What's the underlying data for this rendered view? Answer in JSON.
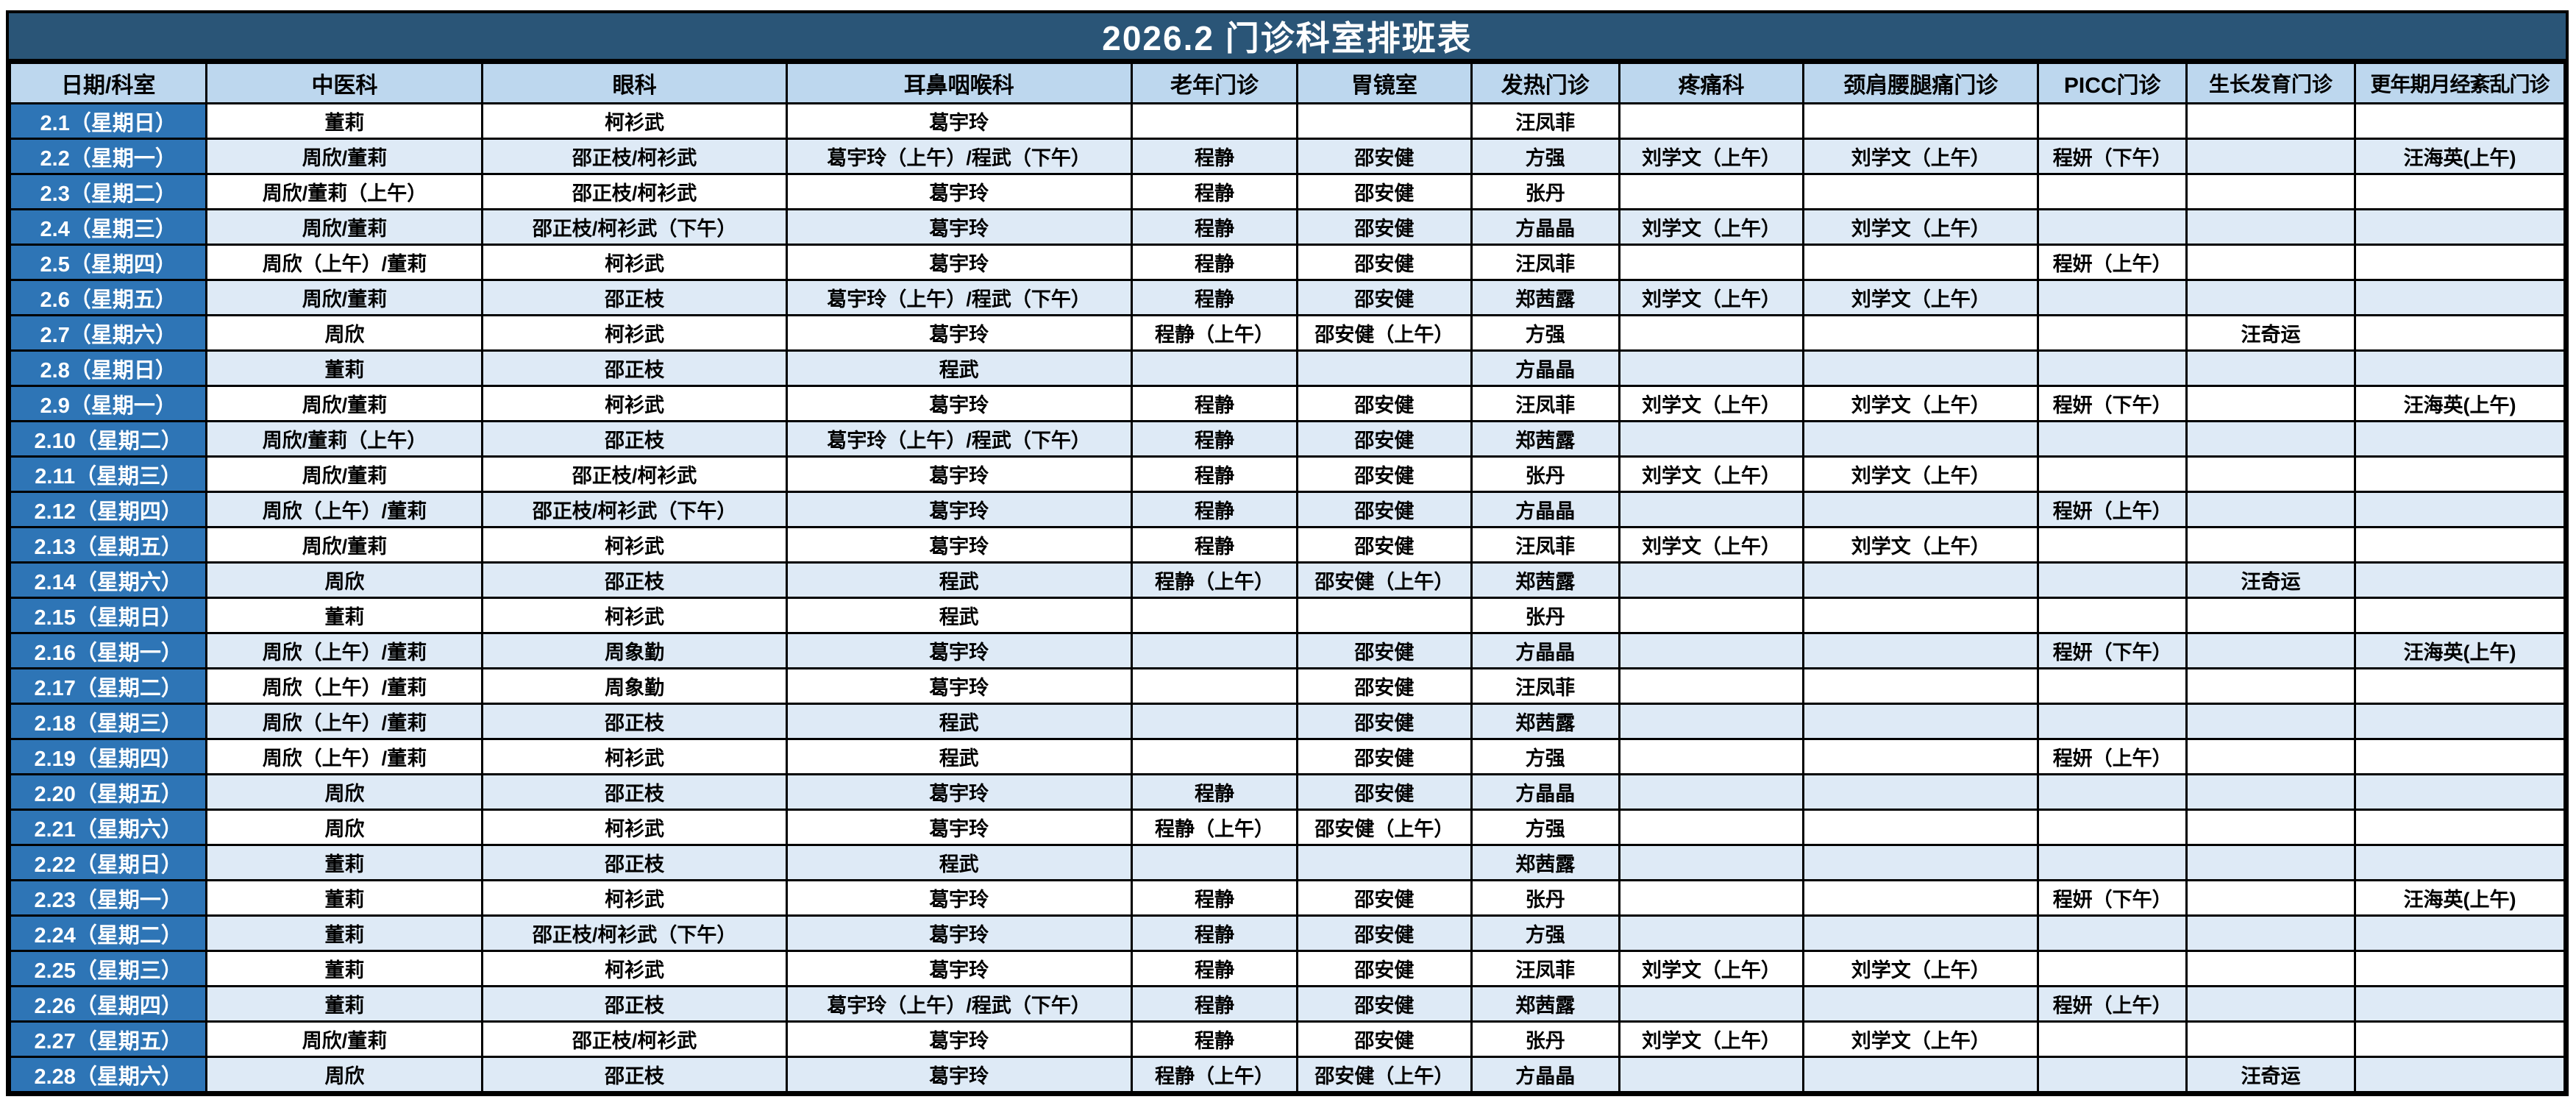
{
  "title": "2026.2  门诊科室排班表",
  "columns": [
    "日期/科室",
    "中医科",
    "眼科",
    "耳鼻咽喉科",
    "老年门诊",
    "胃镜室",
    "发热门诊",
    "疼痛科",
    "颈肩腰腿痛门诊",
    "PICC门诊",
    "生长发育门诊",
    "更年期月经紊乱门诊"
  ],
  "col_widths_pct": [
    7.7,
    10.8,
    11.9,
    13.5,
    6.5,
    6.8,
    5.8,
    7.2,
    9.2,
    5.8,
    6.6,
    8.2
  ],
  "colors": {
    "title_bar_bg": "#2A5577",
    "header_bg": "#BDD7EE",
    "date_col_bg": "#2E75B6",
    "row_bg": "#FFFFFF",
    "alt_row_bg": "#DEEAF6",
    "border": "#000000"
  },
  "rows": [
    {
      "date": "2.1（星期日）",
      "cells": [
        "董莉",
        "柯衫武",
        "葛宇玲",
        "",
        "",
        "汪凤菲",
        "",
        "",
        "",
        "",
        ""
      ]
    },
    {
      "date": "2.2（星期一）",
      "cells": [
        "周欣/董莉",
        "邵正枝/柯衫武",
        "葛宇玲（上午）/程武（下午）",
        "程静",
        "邵安健",
        "方强",
        "刘学文（上午）",
        "刘学文（上午）",
        "程妍（下午）",
        "",
        "汪海英(上午)"
      ]
    },
    {
      "date": "2.3（星期二）",
      "cells": [
        "周欣/董莉（上午）",
        "邵正枝/柯衫武",
        "葛宇玲",
        "程静",
        "邵安健",
        "张丹",
        "",
        "",
        "",
        "",
        ""
      ]
    },
    {
      "date": "2.4（星期三）",
      "cells": [
        "周欣/董莉",
        "邵正枝/柯衫武（下午）",
        "葛宇玲",
        "程静",
        "邵安健",
        "方晶晶",
        "刘学文（上午）",
        "刘学文（上午）",
        "",
        "",
        ""
      ]
    },
    {
      "date": "2.5（星期四）",
      "cells": [
        "周欣（上午）/董莉",
        "柯衫武",
        "葛宇玲",
        "程静",
        "邵安健",
        "汪凤菲",
        "",
        "",
        "程妍（上午）",
        "",
        ""
      ]
    },
    {
      "date": "2.6（星期五）",
      "cells": [
        "周欣/董莉",
        "邵正枝",
        "葛宇玲（上午）/程武（下午）",
        "程静",
        "邵安健",
        "郑茜露",
        "刘学文（上午）",
        "刘学文（上午）",
        "",
        "",
        ""
      ]
    },
    {
      "date": "2.7（星期六）",
      "cells": [
        "周欣",
        "柯衫武",
        "葛宇玲",
        "程静（上午）",
        "邵安健（上午）",
        "方强",
        "",
        "",
        "",
        "汪奇运",
        ""
      ]
    },
    {
      "date": "2.8（星期日）",
      "cells": [
        "董莉",
        "邵正枝",
        "程武",
        "",
        "",
        "方晶晶",
        "",
        "",
        "",
        "",
        ""
      ]
    },
    {
      "date": "2.9（星期一）",
      "cells": [
        "周欣/董莉",
        "柯衫武",
        "葛宇玲",
        "程静",
        "邵安健",
        "汪凤菲",
        "刘学文（上午）",
        "刘学文（上午）",
        "程妍（下午）",
        "",
        "汪海英(上午)"
      ]
    },
    {
      "date": "2.10（星期二）",
      "cells": [
        "周欣/董莉（上午）",
        "邵正枝",
        "葛宇玲（上午）/程武（下午）",
        "程静",
        "邵安健",
        "郑茜露",
        "",
        "",
        "",
        "",
        ""
      ]
    },
    {
      "date": "2.11（星期三）",
      "cells": [
        "周欣/董莉",
        "邵正枝/柯衫武",
        "葛宇玲",
        "程静",
        "邵安健",
        "张丹",
        "刘学文（上午）",
        "刘学文（上午）",
        "",
        "",
        ""
      ]
    },
    {
      "date": "2.12（星期四）",
      "cells": [
        "周欣（上午）/董莉",
        "邵正枝/柯衫武（下午）",
        "葛宇玲",
        "程静",
        "邵安健",
        "方晶晶",
        "",
        "",
        "程妍（上午）",
        "",
        ""
      ]
    },
    {
      "date": "2.13（星期五）",
      "cells": [
        "周欣/董莉",
        "柯衫武",
        "葛宇玲",
        "程静",
        "邵安健",
        "汪凤菲",
        "刘学文（上午）",
        "刘学文（上午）",
        "",
        "",
        ""
      ]
    },
    {
      "date": "2.14（星期六）",
      "cells": [
        "周欣",
        "邵正枝",
        "程武",
        "程静（上午）",
        "邵安健（上午）",
        "郑茜露",
        "",
        "",
        "",
        "汪奇运",
        ""
      ]
    },
    {
      "date": "2.15（星期日）",
      "cells": [
        "董莉",
        "柯衫武",
        "程武",
        "",
        "",
        "张丹",
        "",
        "",
        "",
        "",
        ""
      ]
    },
    {
      "date": "2.16（星期一）",
      "cells": [
        "周欣（上午）/董莉",
        "周象勤",
        "葛宇玲",
        "",
        "邵安健",
        "方晶晶",
        "",
        "",
        "程妍（下午）",
        "",
        "汪海英(上午)"
      ]
    },
    {
      "date": "2.17（星期二）",
      "cells": [
        "周欣（上午）/董莉",
        "周象勤",
        "葛宇玲",
        "",
        "邵安健",
        "汪凤菲",
        "",
        "",
        "",
        "",
        ""
      ]
    },
    {
      "date": "2.18（星期三）",
      "cells": [
        "周欣（上午）/董莉",
        "邵正枝",
        "程武",
        "",
        "邵安健",
        "郑茜露",
        "",
        "",
        "",
        "",
        ""
      ]
    },
    {
      "date": "2.19（星期四）",
      "cells": [
        "周欣（上午）/董莉",
        "柯衫武",
        "程武",
        "",
        "邵安健",
        "方强",
        "",
        "",
        "程妍（上午）",
        "",
        ""
      ]
    },
    {
      "date": "2.20（星期五）",
      "cells": [
        "周欣",
        "邵正枝",
        "葛宇玲",
        "程静",
        "邵安健",
        "方晶晶",
        "",
        "",
        "",
        "",
        ""
      ]
    },
    {
      "date": "2.21（星期六）",
      "cells": [
        "周欣",
        "柯衫武",
        "葛宇玲",
        "程静（上午）",
        "邵安健（上午）",
        "方强",
        "",
        "",
        "",
        "",
        ""
      ]
    },
    {
      "date": "2.22（星期日）",
      "cells": [
        "董莉",
        "邵正枝",
        "程武",
        "",
        "",
        "郑茜露",
        "",
        "",
        "",
        "",
        ""
      ]
    },
    {
      "date": "2.23（星期一）",
      "cells": [
        "董莉",
        "柯衫武",
        "葛宇玲",
        "程静",
        "邵安健",
        "张丹",
        "",
        "",
        "程妍（下午）",
        "",
        "汪海英(上午)"
      ]
    },
    {
      "date": "2.24（星期二）",
      "cells": [
        "董莉",
        "邵正枝/柯衫武（下午）",
        "葛宇玲",
        "程静",
        "邵安健",
        "方强",
        "",
        "",
        "",
        "",
        ""
      ]
    },
    {
      "date": "2.25（星期三）",
      "cells": [
        "董莉",
        "柯衫武",
        "葛宇玲",
        "程静",
        "邵安健",
        "汪凤菲",
        "刘学文（上午）",
        "刘学文（上午）",
        "",
        "",
        ""
      ]
    },
    {
      "date": "2.26（星期四）",
      "cells": [
        "董莉",
        "邵正枝",
        "葛宇玲（上午）/程武（下午）",
        "程静",
        "邵安健",
        "郑茜露",
        "",
        "",
        "程妍（上午）",
        "",
        ""
      ]
    },
    {
      "date": "2.27（星期五）",
      "cells": [
        "周欣/董莉",
        "邵正枝/柯衫武",
        "葛宇玲",
        "程静",
        "邵安健",
        "张丹",
        "刘学文（上午）",
        "刘学文（上午）",
        "",
        "",
        ""
      ]
    },
    {
      "date": "2.28（星期六）",
      "cells": [
        "周欣",
        "邵正枝",
        "葛宇玲",
        "程静（上午）",
        "邵安健（上午）",
        "方晶晶",
        "",
        "",
        "",
        "汪奇运",
        ""
      ]
    }
  ]
}
